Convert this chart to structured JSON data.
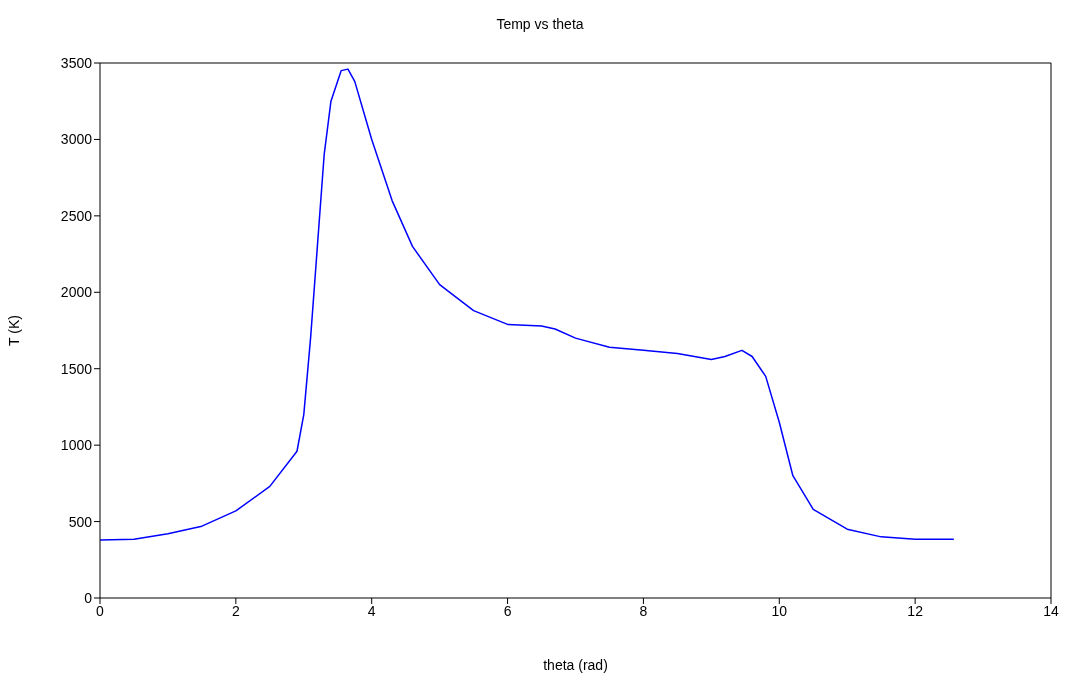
{
  "chart_data": {
    "type": "line",
    "title": "Temp vs theta",
    "xlabel": "theta (rad)",
    "ylabel": "T (K)",
    "xlim": [
      0,
      14
    ],
    "xticks": [
      0,
      2,
      4,
      6,
      8,
      10,
      12,
      14
    ],
    "ylim": [
      0,
      3500
    ],
    "yticks": [
      0,
      500,
      1000,
      1500,
      2000,
      2500,
      3000,
      3500
    ],
    "grid": false,
    "marker": "none",
    "line_style": "solid",
    "series": [
      {
        "color": "#0000ff",
        "x": [
          0,
          0.5,
          1.0,
          1.5,
          2.0,
          2.5,
          2.9,
          3.0,
          3.1,
          3.2,
          3.3,
          3.4,
          3.55,
          3.65,
          3.75,
          4.0,
          4.3,
          4.6,
          5.0,
          5.5,
          6.0,
          6.5,
          6.7,
          7.0,
          7.5,
          8.0,
          8.5,
          9.0,
          9.2,
          9.45,
          9.6,
          9.8,
          10.0,
          10.2,
          10.5,
          11.0,
          11.5,
          12.0,
          12.57
        ],
        "values": [
          380,
          385,
          420,
          470,
          570,
          730,
          960,
          1200,
          1700,
          2300,
          2900,
          3250,
          3450,
          3460,
          3380,
          3000,
          2600,
          2300,
          2050,
          1880,
          1790,
          1780,
          1760,
          1700,
          1640,
          1620,
          1600,
          1560,
          1580,
          1620,
          1580,
          1450,
          1150,
          800,
          580,
          450,
          400,
          385,
          385
        ]
      }
    ]
  }
}
